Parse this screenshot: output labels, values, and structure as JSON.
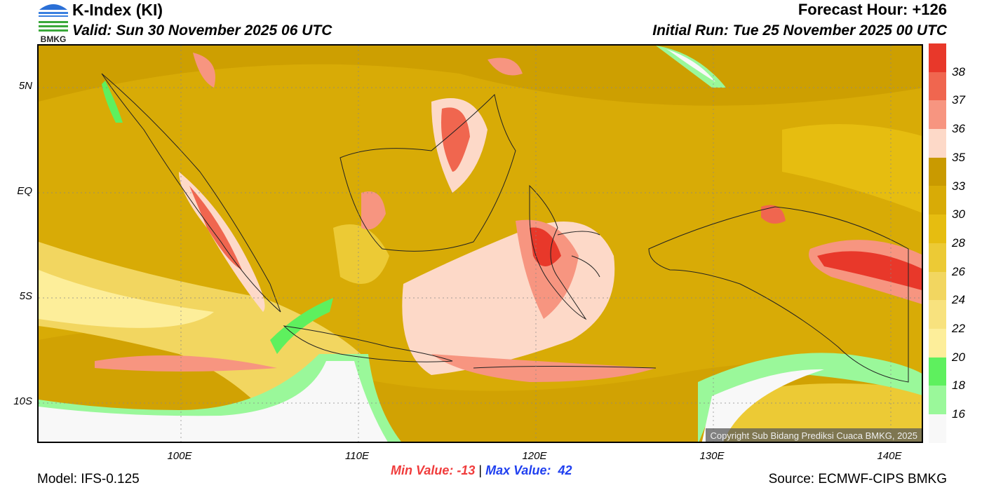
{
  "header": {
    "title": "K-Index (KI)",
    "valid": "Valid: Sun 30 November 2025 06 UTC",
    "forecast_hour": "Forecast Hour: +126",
    "initial_run": "Initial Run: Tue 25 November 2025 00 UTC"
  },
  "logo": {
    "text": "BMKG"
  },
  "map": {
    "lat_labels": [
      "5N",
      "EQ",
      "5S",
      "10S"
    ],
    "lon_labels": [
      "100E",
      "110E",
      "120E",
      "130E",
      "140E"
    ],
    "extent": {
      "lon": [
        92,
        142
      ],
      "lat": [
        -12,
        7
      ]
    },
    "copyright": "Copyright Sub Bidang Prediksi Cuaca BMKG, 2025"
  },
  "colorbar": {
    "labels": [
      "38",
      "37",
      "36",
      "35",
      "33",
      "30",
      "28",
      "26",
      "24",
      "22",
      "20",
      "18",
      "16"
    ],
    "colors": [
      "#e8382a",
      "#f0664f",
      "#f79580",
      "#fdd9c8",
      "#c99a00",
      "#d8ab06",
      "#e6bd10",
      "#ecca35",
      "#f2d660",
      "#f8e27e",
      "#fdee9a",
      "#5ef05e",
      "#9af89a",
      "#f8f8f8"
    ]
  },
  "footer": {
    "min_label": "Min Value: -13",
    "max_label": "Max Value:  42",
    "separator": "|",
    "model": "Model: IFS-0.125",
    "source": "Source: ECMWF-CIPS BMKG",
    "min_color": "#f03c3c",
    "max_color": "#2040f0"
  }
}
